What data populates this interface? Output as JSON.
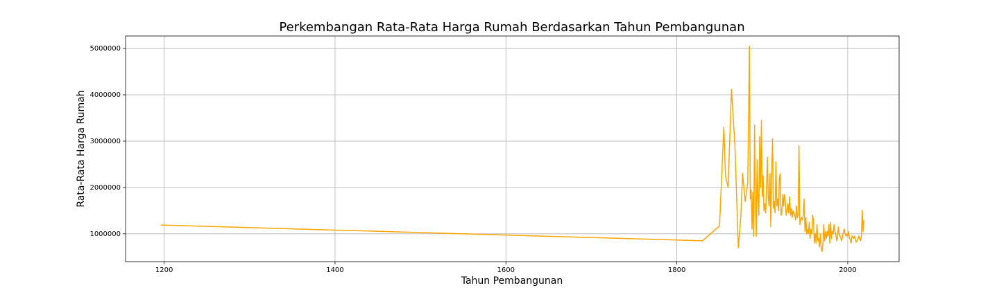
{
  "chart_data": {
    "type": "line",
    "title": "Perkembangan Rata-Rata Harga Rumah Berdasarkan Tahun Pembangunan",
    "xlabel": "Tahun Pembangunan",
    "ylabel": "Rata-Rata Harga Rumah",
    "color": "#ffa500",
    "grid": true,
    "xlim": [
      1154.85,
      2060.15
    ],
    "ylim": [
      400000,
      5270000
    ],
    "xticks": [
      1200,
      1400,
      1600,
      1800,
      2000
    ],
    "yticks": [
      1000000,
      2000000,
      3000000,
      4000000,
      5000000
    ],
    "x": [
      1196,
      1830,
      1850,
      1855,
      1857,
      1860,
      1864,
      1868,
      1872,
      1875,
      1877,
      1880,
      1883,
      1885,
      1886,
      1887,
      1888,
      1889,
      1890,
      1891,
      1892,
      1893,
      1894,
      1895,
      1896,
      1897,
      1898,
      1899,
      1900,
      1901,
      1902,
      1903,
      1904,
      1905,
      1906,
      1907,
      1908,
      1909,
      1910,
      1911,
      1912,
      1913,
      1914,
      1915,
      1916,
      1917,
      1918,
      1919,
      1920,
      1921,
      1922,
      1923,
      1924,
      1925,
      1926,
      1927,
      1928,
      1929,
      1930,
      1931,
      1932,
      1933,
      1934,
      1935,
      1936,
      1937,
      1938,
      1939,
      1940,
      1941,
      1942,
      1943,
      1944,
      1945,
      1946,
      1947,
      1948,
      1949,
      1950,
      1951,
      1952,
      1953,
      1954,
      1955,
      1956,
      1957,
      1958,
      1959,
      1960,
      1961,
      1962,
      1963,
      1964,
      1965,
      1966,
      1967,
      1968,
      1969,
      1970,
      1971,
      1972,
      1973,
      1974,
      1975,
      1976,
      1977,
      1978,
      1979,
      1980,
      1981,
      1982,
      1983,
      1984,
      1985,
      1986,
      1987,
      1988,
      1989,
      1990,
      1991,
      1992,
      1993,
      1994,
      1995,
      1996,
      1997,
      1998,
      1999,
      2000,
      2001,
      2002,
      2003,
      2004,
      2005,
      2006,
      2007,
      2008,
      2009,
      2010,
      2011,
      2012,
      2013,
      2014,
      2015,
      2016,
      2017,
      2018,
      2019
    ],
    "values": [
      1190000,
      850000,
      1170000,
      3300000,
      2250000,
      2000000,
      4120000,
      2900000,
      700000,
      1400000,
      2300000,
      1700000,
      2100000,
      5050000,
      1750000,
      1950000,
      1100000,
      1900000,
      950000,
      3350000,
      1600000,
      950000,
      2600000,
      1800000,
      1400000,
      3100000,
      2000000,
      3450000,
      1800000,
      2250000,
      1500000,
      1650000,
      1450000,
      2000000,
      2650000,
      1800000,
      1600000,
      2300000,
      1150000,
      2300000,
      3050000,
      1550000,
      1700000,
      1450000,
      2550000,
      1600000,
      1750000,
      1500000,
      2200000,
      2300000,
      1400000,
      1450000,
      1850000,
      1600000,
      1850000,
      1700000,
      1400000,
      1500000,
      1650000,
      1450000,
      1800000,
      1400000,
      1550000,
      1350000,
      1500000,
      1450000,
      1400000,
      1300000,
      1600000,
      1350000,
      1400000,
      2900000,
      1200000,
      1300000,
      1350000,
      1300000,
      1400000,
      1750000,
      1050000,
      1350000,
      1000000,
      1100000,
      1000000,
      1250000,
      900000,
      1100000,
      1000000,
      1400000,
      1300000,
      800000,
      1000000,
      800000,
      1200000,
      850000,
      900000,
      720000,
      1000000,
      700000,
      620000,
      800000,
      1200000,
      850000,
      1050000,
      900000,
      1050000,
      950000,
      1200000,
      800000,
      1250000,
      900000,
      1050000,
      1000000,
      1200000,
      1050000,
      1000000,
      850000,
      900000,
      1150000,
      1000000,
      950000,
      900000,
      850000,
      950000,
      1050000,
      1100000,
      1000000,
      950000,
      1000000,
      950000,
      1050000,
      900000,
      880000,
      800000,
      950000,
      950000,
      900000,
      950000,
      900000,
      820000,
      850000,
      900000,
      950000,
      900000,
      850000,
      950000,
      1500000,
      1050000,
      1300000
    ]
  }
}
